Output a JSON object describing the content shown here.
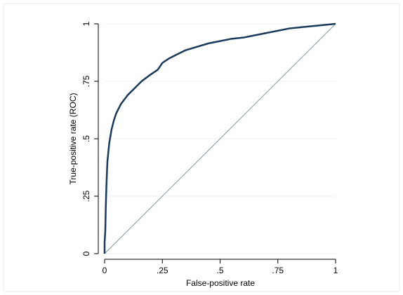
{
  "chart_data": {
    "type": "line",
    "xlabel": "False-positive rate",
    "ylabel": "True-positive rate (ROC)",
    "xlim": [
      0,
      1
    ],
    "ylim": [
      0,
      1
    ],
    "xticks": [
      0,
      {
        "value": 0.25,
        "label": ".25"
      },
      {
        "value": 0.5,
        "label": ".5"
      },
      {
        "value": 0.75,
        "label": ".75"
      },
      1
    ],
    "yticks": [
      0,
      {
        "value": 0.25,
        "label": ".25"
      },
      {
        "value": 0.5,
        "label": ".5"
      },
      {
        "value": 0.75,
        "label": ".75"
      },
      1
    ],
    "grid": true,
    "series": [
      {
        "color": "#1a3a5c",
        "x": [
          0,
          0,
          0.003,
          0.005,
          0.008,
          0.012,
          0.02,
          0.03,
          0.04,
          0.05,
          0.07,
          0.1,
          0.13,
          0.16,
          0.2,
          0.23,
          0.25,
          0.28,
          0.3,
          0.35,
          0.4,
          0.45,
          0.5,
          0.55,
          0.6,
          0.65,
          0.7,
          0.75,
          0.8,
          0.85,
          0.9,
          0.95,
          1
        ],
        "values": [
          0,
          0.05,
          0.1,
          0.2,
          0.3,
          0.4,
          0.48,
          0.54,
          0.58,
          0.61,
          0.65,
          0.69,
          0.72,
          0.75,
          0.78,
          0.8,
          0.83,
          0.85,
          0.86,
          0.885,
          0.9,
          0.915,
          0.925,
          0.935,
          0.94,
          0.95,
          0.96,
          0.97,
          0.98,
          0.985,
          0.99,
          0.995,
          1
        ]
      },
      {
        "color": "#7a9e9a",
        "x": [
          0,
          1
        ],
        "values": [
          0,
          1
        ]
      }
    ]
  }
}
